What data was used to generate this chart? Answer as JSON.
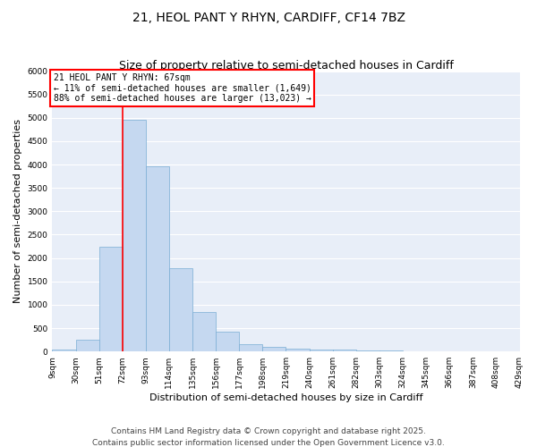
{
  "title_line1": "21, HEOL PANT Y RHYN, CARDIFF, CF14 7BZ",
  "title_line2": "Size of property relative to semi-detached houses in Cardiff",
  "xlabel": "Distribution of semi-detached houses by size in Cardiff",
  "ylabel": "Number of semi-detached properties",
  "bar_color": "#c5d8f0",
  "bar_edge_color": "#7aadd4",
  "background_color": "#e8eef8",
  "grid_color": "#ffffff",
  "property_line_x": 72,
  "annotation_title": "21 HEOL PANT Y RHYN: 67sqm",
  "annotation_line1": "← 11% of semi-detached houses are smaller (1,649)",
  "annotation_line2": "88% of semi-detached houses are larger (13,023) →",
  "bins": [
    9,
    30,
    51,
    72,
    93,
    114,
    135,
    156,
    177,
    198,
    219,
    240,
    261,
    282,
    303,
    324,
    345,
    366,
    387,
    408,
    429
  ],
  "bin_labels": [
    "9sqm",
    "30sqm",
    "51sqm",
    "72sqm",
    "93sqm",
    "114sqm",
    "135sqm",
    "156sqm",
    "177sqm",
    "198sqm",
    "219sqm",
    "240sqm",
    "261sqm",
    "282sqm",
    "303sqm",
    "324sqm",
    "345sqm",
    "366sqm",
    "387sqm",
    "408sqm",
    "429sqm"
  ],
  "values": [
    50,
    250,
    2250,
    4950,
    3970,
    1780,
    840,
    420,
    160,
    100,
    65,
    50,
    35,
    25,
    15,
    10,
    7,
    5,
    3,
    2
  ],
  "ylim": [
    0,
    6000
  ],
  "yticks": [
    0,
    500,
    1000,
    1500,
    2000,
    2500,
    3000,
    3500,
    4000,
    4500,
    5000,
    5500,
    6000
  ],
  "footer_line1": "Contains HM Land Registry data © Crown copyright and database right 2025.",
  "footer_line2": "Contains public sector information licensed under the Open Government Licence v3.0.",
  "title_fontsize": 10,
  "subtitle_fontsize": 9,
  "axis_label_fontsize": 8,
  "tick_fontsize": 6.5,
  "footer_fontsize": 6.5,
  "annot_fontsize": 7
}
